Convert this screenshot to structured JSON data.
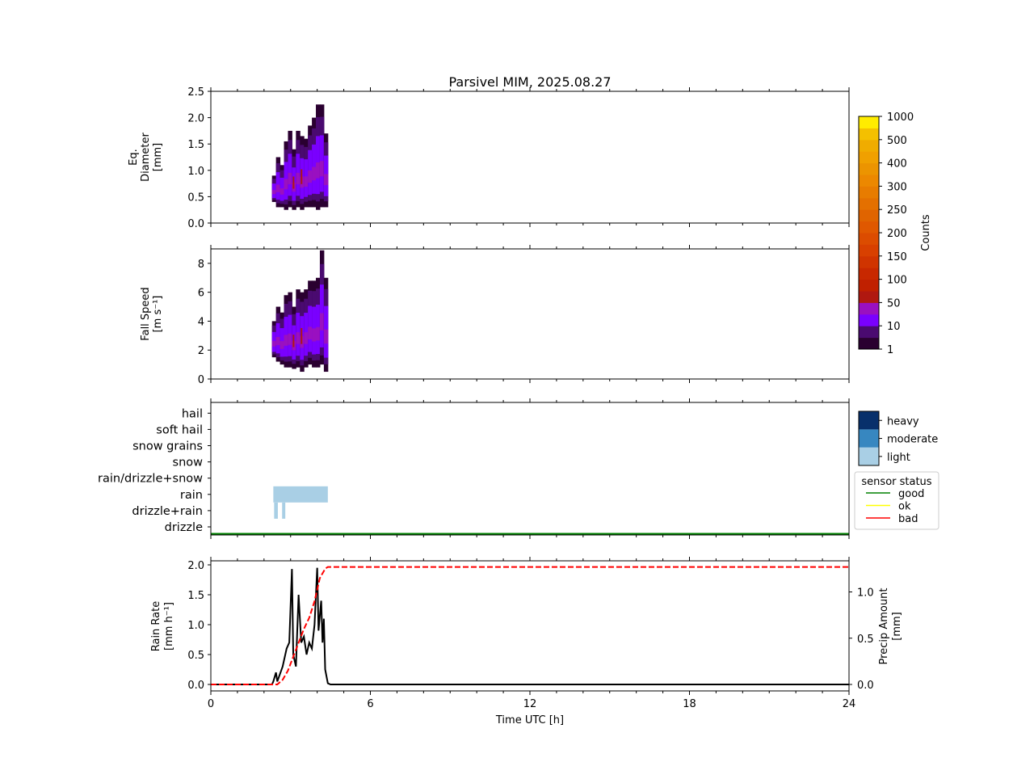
{
  "chart_data": [
    {
      "type": "heatmap",
      "title": "Parsivel MIM, 2025.08.27",
      "ylabel": "Eq.\nDiameter\n[mm]",
      "ylim": [
        0,
        2.5
      ],
      "yticks": [
        "0.0",
        "0.5",
        "1.0",
        "1.5",
        "2.0",
        "2.5"
      ],
      "xlim": [
        0,
        24
      ],
      "columns": [
        [
          2.3,
          0.4,
          0.9
        ],
        [
          2.45,
          0.3,
          1.25
        ],
        [
          2.6,
          0.3,
          1.1
        ],
        [
          2.75,
          0.25,
          1.55
        ],
        [
          2.9,
          0.3,
          1.75
        ],
        [
          3.05,
          0.25,
          1.4
        ],
        [
          3.2,
          0.3,
          1.75
        ],
        [
          3.35,
          0.25,
          1.65
        ],
        [
          3.5,
          0.3,
          1.6
        ],
        [
          3.65,
          0.3,
          1.85
        ],
        [
          3.8,
          0.3,
          2.0
        ],
        [
          3.95,
          0.25,
          2.25
        ],
        [
          4.1,
          0.3,
          2.25
        ],
        [
          4.25,
          0.3,
          1.7
        ]
      ]
    },
    {
      "type": "heatmap",
      "ylabel": "Fall Speed\n[m s⁻¹]",
      "ylim": [
        0,
        9
      ],
      "yticks": [
        "0",
        "2",
        "4",
        "6",
        "8"
      ],
      "xlim": [
        0,
        24
      ],
      "columns": [
        [
          2.3,
          1.5,
          4.0
        ],
        [
          2.45,
          1.2,
          5.0
        ],
        [
          2.6,
          1.0,
          4.6
        ],
        [
          2.75,
          0.8,
          5.8
        ],
        [
          2.9,
          0.8,
          6.0
        ],
        [
          3.05,
          0.7,
          5.0
        ],
        [
          3.2,
          0.8,
          6.2
        ],
        [
          3.35,
          0.5,
          6.0
        ],
        [
          3.5,
          0.8,
          6.2
        ],
        [
          3.65,
          1.0,
          6.8
        ],
        [
          3.8,
          0.8,
          6.8
        ],
        [
          3.95,
          0.8,
          7.0
        ],
        [
          4.1,
          1.0,
          8.9
        ],
        [
          4.25,
          0.5,
          7.0
        ]
      ]
    },
    {
      "type": "table",
      "categories": [
        "drizzle",
        "drizzle+rain",
        "rain",
        "rain/drizzle+snow",
        "snow",
        "snow grains",
        "soft hail",
        "hail"
      ],
      "intensity_legend": [
        "light",
        "moderate",
        "heavy"
      ],
      "intensity_colors": [
        "#a9cfe5",
        "#3787c0",
        "#08306b"
      ],
      "events": [
        {
          "category": "rain",
          "start": 2.35,
          "end": 4.4,
          "intensity": "light"
        },
        {
          "category": "drizzle+rain",
          "start": 2.38,
          "end": 2.52,
          "intensity": "light"
        },
        {
          "category": "drizzle+rain",
          "start": 2.68,
          "end": 2.8,
          "intensity": "light"
        }
      ],
      "sensor_status_title": "sensor status",
      "sensor_status_legend": [
        {
          "name": "good",
          "color": "#008000"
        },
        {
          "name": "ok",
          "color": "#ffff00"
        },
        {
          "name": "bad",
          "color": "#ff0000"
        }
      ],
      "sensor_status": "good"
    },
    {
      "type": "line",
      "xlabel": "Time UTC [h]",
      "ylabel": "Rain Rate\n[mm h⁻¹]",
      "ylabel2": "Precip Amount\n[mm]",
      "xlim": [
        0,
        24
      ],
      "ylim": [
        0,
        2.05
      ],
      "ylim2": [
        0,
        1.3
      ],
      "xticks": [
        "0",
        "6",
        "12",
        "18",
        "24"
      ],
      "yticks": [
        "0.0",
        "0.5",
        "1.0",
        "1.5",
        "2.0"
      ],
      "yticks2": [
        "0.0",
        "0.5",
        "1.0"
      ],
      "rain_rate": {
        "x": [
          0,
          2.3,
          2.35,
          2.45,
          2.5,
          2.7,
          2.85,
          2.95,
          3.05,
          3.1,
          3.2,
          3.3,
          3.4,
          3.5,
          3.6,
          3.7,
          3.8,
          3.9,
          4.0,
          4.05,
          4.15,
          4.2,
          4.25,
          4.3,
          4.4,
          4.5,
          24
        ],
        "y": [
          0,
          0,
          0.05,
          0.2,
          0.05,
          0.3,
          0.6,
          0.7,
          1.93,
          0.5,
          0.3,
          1.5,
          0.7,
          0.8,
          0.5,
          0.7,
          0.6,
          1.0,
          1.95,
          0.9,
          1.4,
          0.7,
          1.1,
          0.25,
          0.02,
          0,
          0
        ]
      },
      "precip_amount": {
        "x": [
          0,
          2.5,
          2.7,
          2.9,
          3.1,
          3.3,
          3.5,
          3.7,
          3.9,
          4.1,
          4.3,
          4.4,
          24
        ],
        "y": [
          0,
          0,
          0.05,
          0.15,
          0.3,
          0.45,
          0.6,
          0.72,
          0.9,
          1.15,
          1.25,
          1.27,
          1.27
        ]
      }
    }
  ],
  "colorbar": {
    "label": "Counts",
    "ticks": [
      "1",
      "10",
      "50",
      "100",
      "150",
      "200",
      "250",
      "300",
      "400",
      "500",
      "1000"
    ],
    "colors": [
      "#2a0030",
      "#4a0a70",
      "#7a00ff",
      "#9a10c0",
      "#b01810",
      "#c02000",
      "#c82800",
      "#d03400",
      "#d84000",
      "#dc4c00",
      "#e05800",
      "#e06400",
      "#e47000",
      "#e87c00",
      "#ec8800",
      "#ec9400",
      "#f0a000",
      "#f0ac00",
      "#f4c000",
      "#ffec00"
    ]
  }
}
